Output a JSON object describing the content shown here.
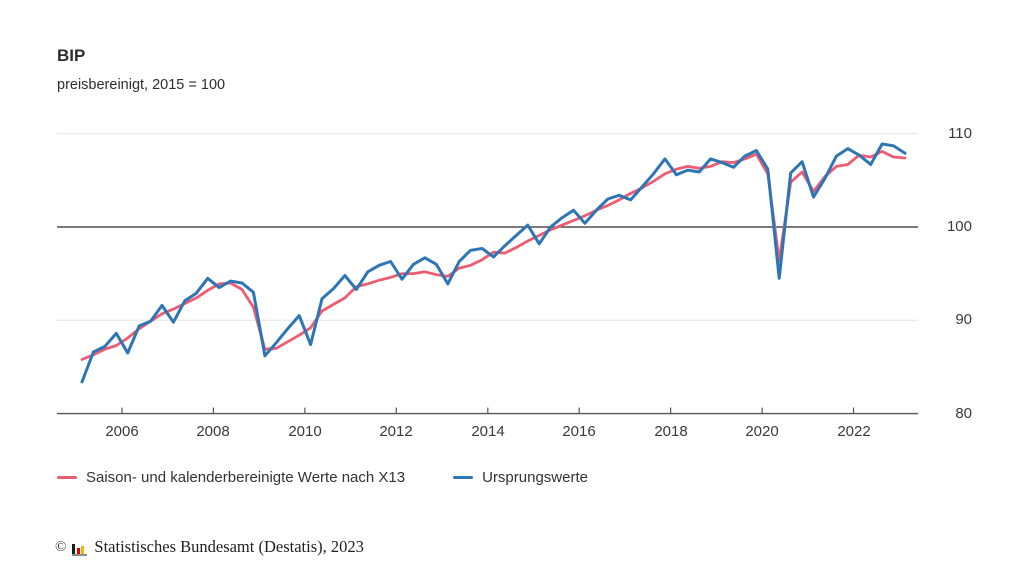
{
  "header": {
    "title": "BIP",
    "subtitle": "preisbereinigt, 2015 = 100"
  },
  "chart_data": {
    "type": "line",
    "title": "BIP",
    "subtitle": "preisbereinigt, 2015 = 100",
    "x_unit": "quarter",
    "x_start": "2005-Q1",
    "x_end": "2023-Q1",
    "x_ticks": [
      2006,
      2008,
      2010,
      2012,
      2014,
      2016,
      2018,
      2020,
      2022
    ],
    "y_ticks": [
      110,
      100,
      90,
      80
    ],
    "ylim": [
      80,
      110
    ],
    "reference_line_y": 100,
    "grid": "horizontal",
    "legend_position": "bottom",
    "series": [
      {
        "name": "Saison- und kalenderbereinigte Werte nach X13",
        "color": "#ee5c72",
        "values": [
          85.8,
          86.3,
          86.9,
          87.3,
          88.1,
          89.1,
          89.9,
          90.7,
          91.2,
          91.8,
          92.4,
          93.2,
          93.9,
          94.0,
          93.3,
          91.4,
          86.9,
          87.0,
          87.7,
          88.4,
          89.2,
          91.0,
          91.7,
          92.4,
          93.6,
          93.9,
          94.3,
          94.6,
          95.0,
          95.0,
          95.2,
          94.9,
          94.7,
          95.6,
          95.9,
          96.5,
          97.3,
          97.2,
          97.8,
          98.5,
          99.1,
          99.7,
          100.2,
          100.7,
          101.2,
          101.8,
          102.3,
          102.9,
          103.6,
          104.2,
          104.9,
          105.7,
          106.2,
          106.5,
          106.3,
          106.5,
          107.0,
          106.9,
          107.3,
          107.8,
          105.7,
          96.4,
          104.8,
          105.9,
          103.8,
          105.4,
          106.5,
          106.7,
          107.7,
          107.5,
          108.1,
          107.5,
          107.4
        ]
      },
      {
        "name": "Ursprungswerte",
        "color": "#2e75b6",
        "values": [
          83.4,
          86.6,
          87.2,
          88.6,
          86.5,
          89.4,
          89.9,
          91.6,
          89.8,
          92.1,
          92.9,
          94.5,
          93.5,
          94.2,
          94.0,
          93.0,
          86.2,
          87.6,
          89.1,
          90.5,
          87.4,
          92.3,
          93.4,
          94.8,
          93.3,
          95.2,
          95.9,
          96.3,
          94.4,
          96.0,
          96.7,
          96.0,
          93.9,
          96.3,
          97.5,
          97.7,
          96.8,
          98.0,
          99.1,
          100.2,
          98.2,
          100.0,
          101.0,
          101.8,
          100.4,
          101.8,
          103.0,
          103.4,
          102.9,
          104.3,
          105.7,
          107.3,
          105.6,
          106.1,
          105.9,
          107.3,
          106.9,
          106.4,
          107.6,
          108.2,
          106.2,
          94.5,
          105.8,
          107.0,
          103.2,
          105.2,
          107.6,
          108.4,
          107.7,
          106.7,
          108.9,
          108.7,
          107.9
        ]
      }
    ],
    "colors": {
      "grid_light": "#e3e3e3",
      "reference_line": "#2b2b2b",
      "axis": "#555555"
    }
  },
  "footer": {
    "copyright_symbol": "©",
    "source": "Statistisches Bundesamt (Destatis), 2023",
    "logo_bar_colors": [
      "#1a1a1a",
      "#e00000",
      "#f5b800"
    ],
    "logo_baseline_color": "#8c8c8c"
  }
}
